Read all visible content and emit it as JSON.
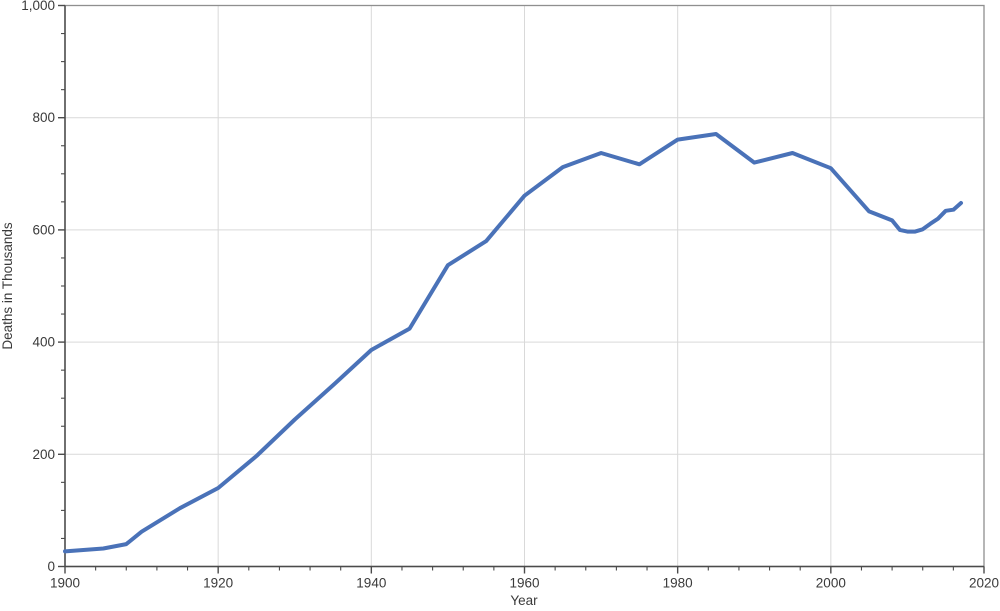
{
  "chart_data": {
    "type": "line",
    "title": "",
    "xlabel": "Year",
    "ylabel": "Deaths in Thousands",
    "xlim": [
      1900,
      2020
    ],
    "ylim": [
      0,
      1000
    ],
    "x_major_ticks": [
      1900,
      1920,
      1940,
      1960,
      1980,
      2000,
      2020
    ],
    "x_major_tick_labels": [
      "1900",
      "1920",
      "1940",
      "1960",
      "1980",
      "2000",
      "2020"
    ],
    "x_minor_step": 4,
    "y_major_ticks": [
      0,
      200,
      400,
      600,
      800,
      1000
    ],
    "y_major_tick_labels": [
      "0",
      "200",
      "400",
      "600",
      "800",
      "1,000"
    ],
    "y_minor_step": 50,
    "grid": true,
    "legend_position": "none",
    "series": [
      {
        "name": "deaths-in-thousands",
        "color": "#4a72b8",
        "line_width": 4,
        "points": [
          [
            1900,
            27
          ],
          [
            1905,
            32
          ],
          [
            1908,
            40
          ],
          [
            1910,
            62
          ],
          [
            1915,
            104
          ],
          [
            1920,
            140
          ],
          [
            1925,
            197
          ],
          [
            1930,
            262
          ],
          [
            1935,
            323
          ],
          [
            1940,
            386
          ],
          [
            1945,
            424
          ],
          [
            1950,
            537
          ],
          [
            1955,
            580
          ],
          [
            1960,
            661
          ],
          [
            1965,
            712
          ],
          [
            1970,
            737
          ],
          [
            1975,
            717
          ],
          [
            1980,
            761
          ],
          [
            1985,
            771
          ],
          [
            1990,
            720
          ],
          [
            1995,
            737
          ],
          [
            2000,
            710
          ],
          [
            2005,
            633
          ],
          [
            2008,
            617
          ],
          [
            2009,
            600
          ],
          [
            2010,
            597
          ],
          [
            2011,
            597
          ],
          [
            2012,
            601
          ],
          [
            2013,
            611
          ],
          [
            2014,
            620
          ],
          [
            2015,
            634
          ],
          [
            2016,
            636
          ],
          [
            2017,
            648
          ]
        ]
      }
    ],
    "style_colors": {
      "gridline": "#d9d9d9",
      "frame": "#8f8f8f",
      "axis": "#4b4b4b",
      "tick": "#4b4b4b",
      "text": "#3a3a3a",
      "background": "#ffffff"
    }
  }
}
